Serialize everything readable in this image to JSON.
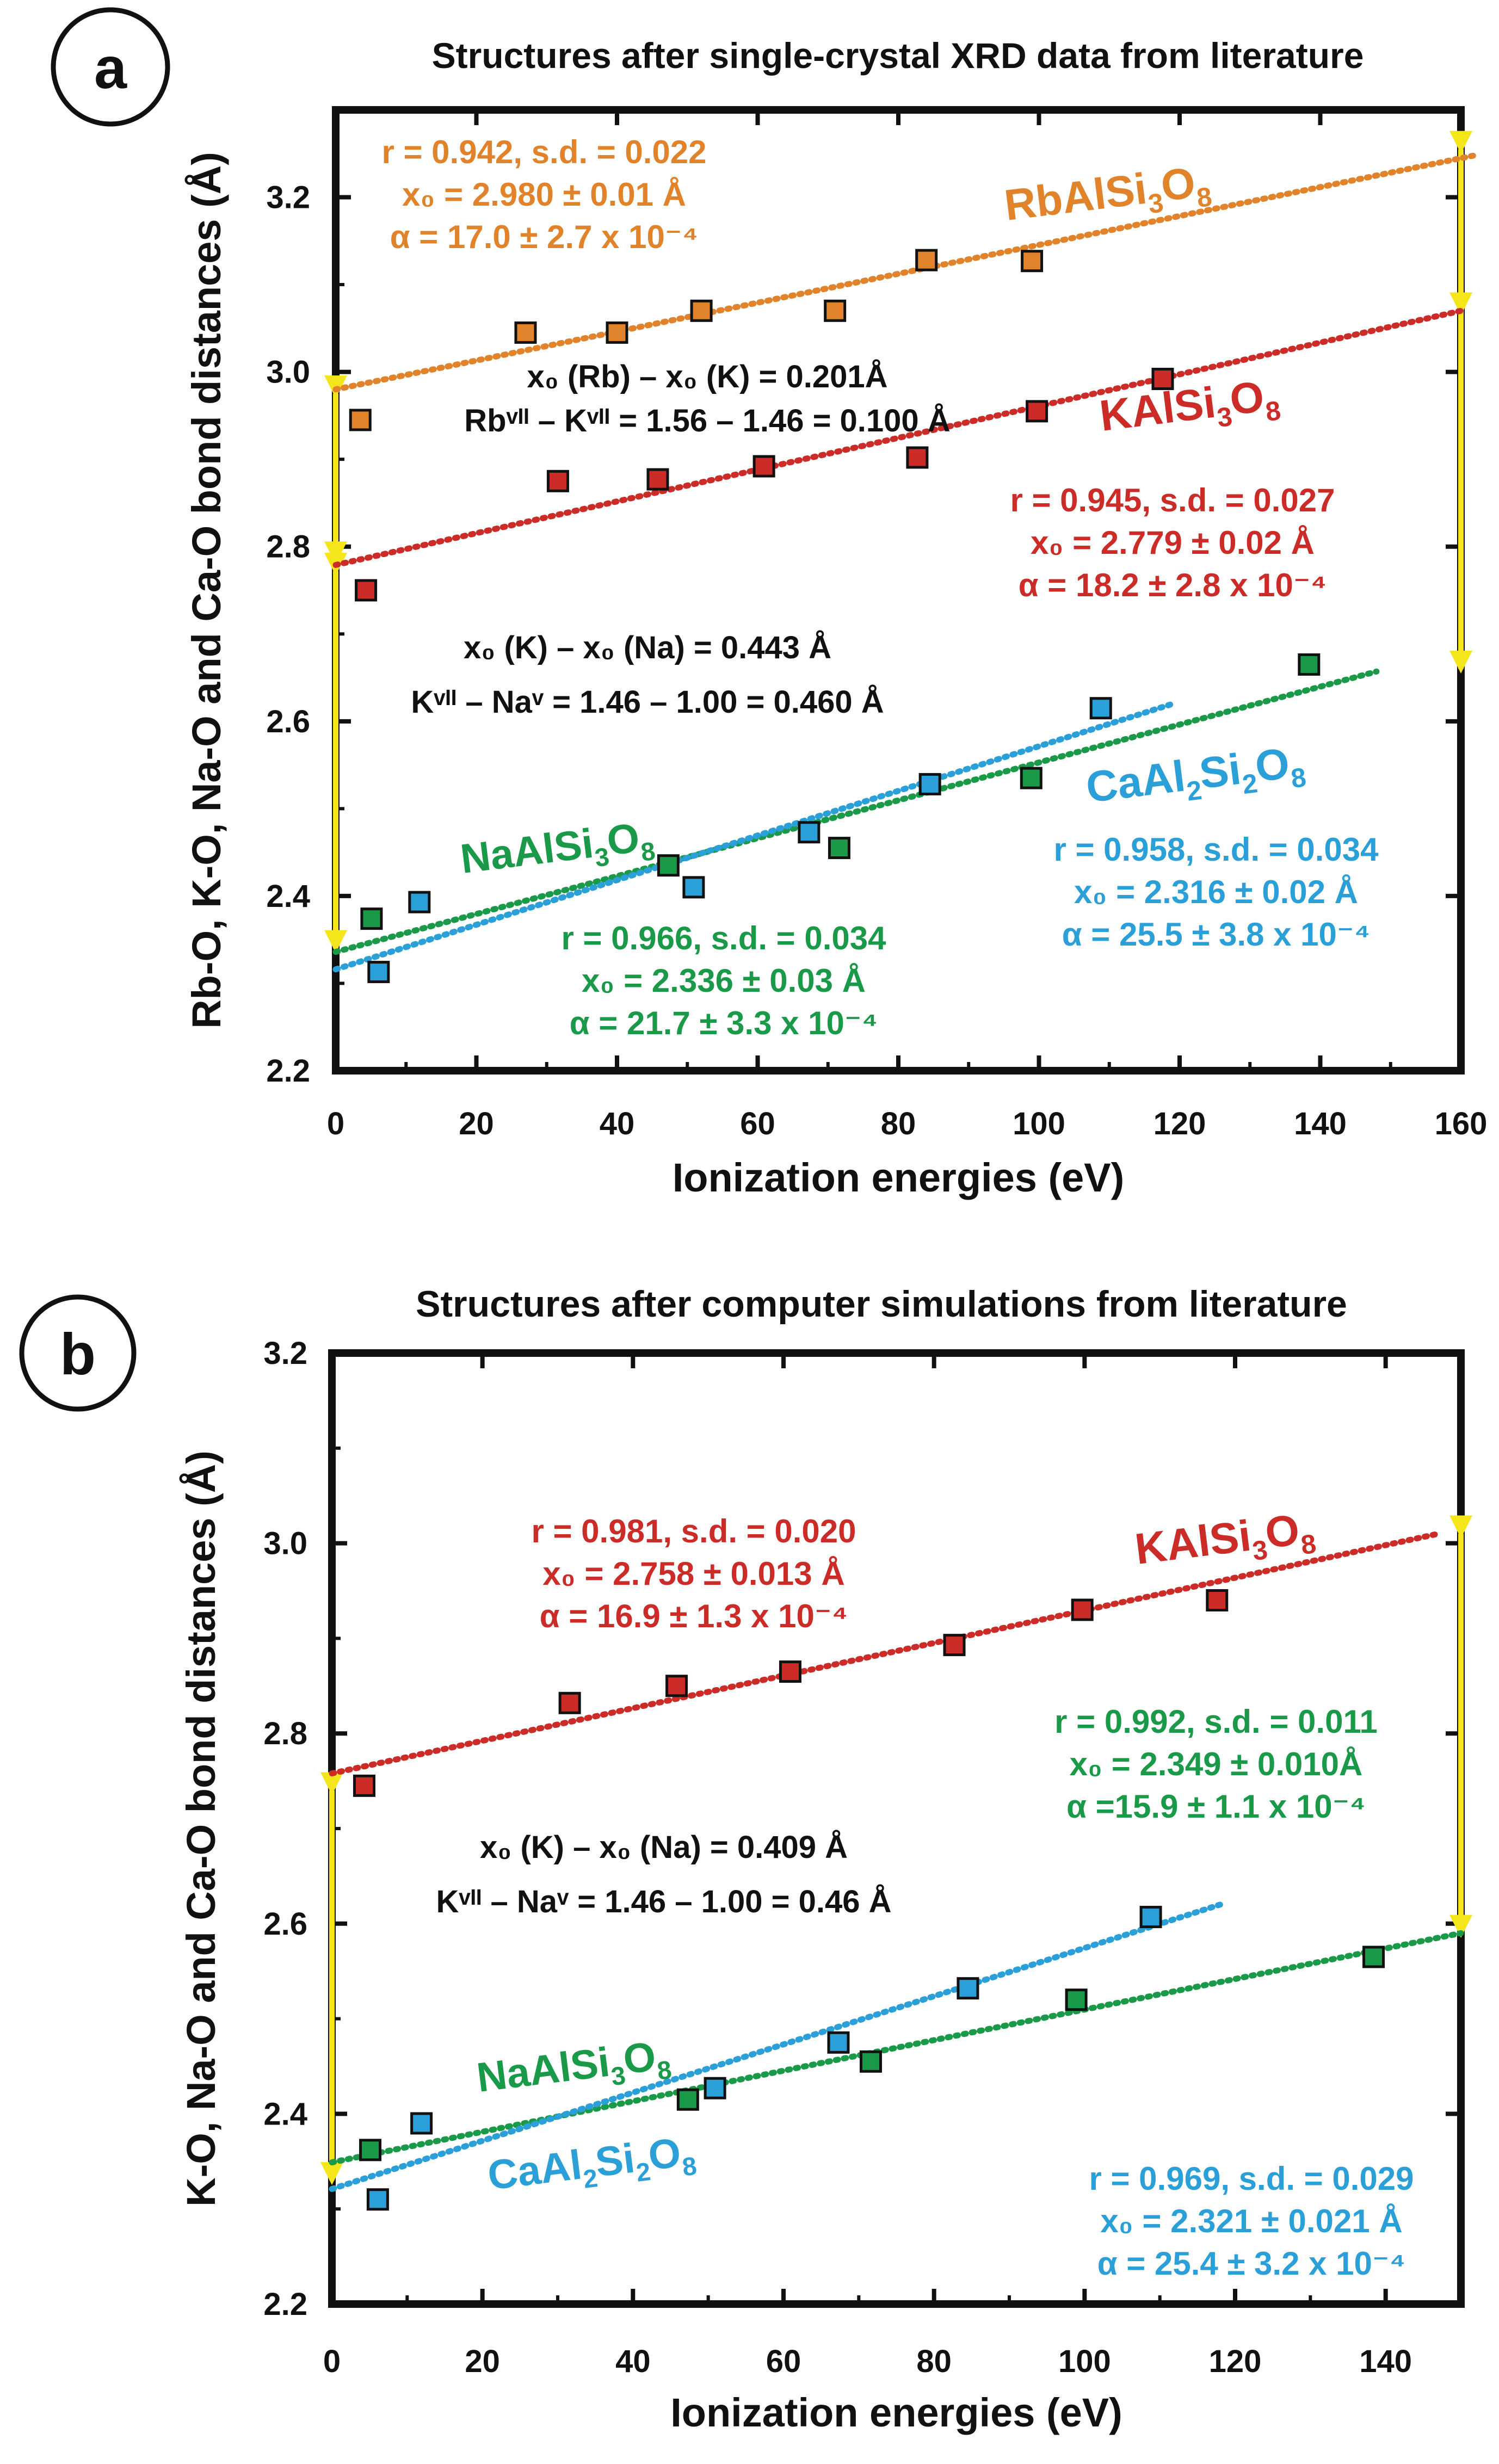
{
  "colors": {
    "orange": "#e0832a",
    "red": "#cc2c27",
    "green": "#1a9a48",
    "blue": "#2b9fd8",
    "yellow": "#f5e61c",
    "black": "#111111"
  },
  "chart_data": [
    {
      "type": "scatter",
      "panel_letter": "a",
      "title": "Structures after single-crystal XRD data from literature",
      "xlabel": "Ionization energies (eV)",
      "ylabel": "Rb-O, K-O, Na-O and Ca-O bond distances (Å)",
      "xlim": [
        0,
        160
      ],
      "ylim": [
        2.2,
        3.3
      ],
      "xticks": [
        "0",
        "20",
        "40",
        "60",
        "80",
        "100",
        "120",
        "140",
        "160"
      ],
      "yticks": [
        "2.2",
        "2.4",
        "2.6",
        "2.8",
        "3.0",
        "3.2"
      ],
      "series": [
        {
          "name": "RbAlSi3O8",
          "color_key": "orange",
          "label": {
            "base": "RbAlSi",
            "sub1": "3",
            "mid": "O",
            "sub2": "8"
          },
          "x": [
            3.5,
            27,
            40,
            52,
            71,
            84,
            99
          ],
          "y": [
            2.945,
            3.045,
            3.045,
            3.07,
            3.07,
            3.128,
            3.127
          ],
          "fit": {
            "x0": 0,
            "x1": 162,
            "y0": 2.98,
            "y1": 3.248
          },
          "stats": {
            "r": "r = 0.942, s.d. = 0.022",
            "x0": "x₀ = 2.980 ± 0.01 Å",
            "alpha": "α = 17.0 ± 2.7 x 10⁻⁴"
          }
        },
        {
          "name": "KAlSi3O8",
          "color_key": "red",
          "label": {
            "base": "KAlSi",
            "sub1": "3",
            "mid": "O",
            "sub2": "8"
          },
          "x": [
            4.3,
            31.6,
            45.8,
            60.9,
            82.7,
            99.7,
            117.6
          ],
          "y": [
            2.75,
            2.875,
            2.877,
            2.892,
            2.902,
            2.955,
            2.992
          ],
          "fit": {
            "x0": 0,
            "x1": 160,
            "y0": 2.779,
            "y1": 3.07
          },
          "stats": {
            "r": "r = 0.945, s.d. = 0.027",
            "x0": "x₀ = 2.779 ± 0.02 Å",
            "alpha": "α = 18.2 ± 2.8 x 10⁻⁴"
          }
        },
        {
          "name": "NaAlSi3O8",
          "color_key": "green",
          "label": {
            "base": "NaAlSi",
            "sub1": "3",
            "mid": "O",
            "sub2": "8"
          },
          "x": [
            5.1,
            47.3,
            71.6,
            98.9,
            138.4
          ],
          "y": [
            2.374,
            2.435,
            2.455,
            2.535,
            2.665
          ],
          "fit": {
            "x0": 0,
            "x1": 148,
            "y0": 2.336,
            "y1": 2.657
          },
          "stats": {
            "r": "r = 0.966, s.d. = 0.034",
            "x0": "x₀ = 2.336 ± 0.03 Å",
            "alpha": "α = 21.7 ± 3.3 x 10⁻⁴"
          }
        },
        {
          "name": "CaAl2Si2O8",
          "color_key": "blue",
          "label": {
            "base": "CaAl",
            "sub1": "2",
            "mid": "Si",
            "sub2": "2",
            "tail": "O",
            "sub3": "8"
          },
          "x": [
            6.1,
            11.9,
            50.9,
            67.3,
            84.5,
            108.8
          ],
          "y": [
            2.313,
            2.393,
            2.41,
            2.473,
            2.528,
            2.615
          ],
          "fit": {
            "x0": 0,
            "x1": 119,
            "y0": 2.316,
            "y1": 2.62
          },
          "stats": {
            "r": "r = 0.958, s.d. = 0.034",
            "x0": "x₀ = 2.316 ± 0.02 Å",
            "alpha": "α = 25.5 ± 3.8 x 10⁻⁴"
          }
        }
      ],
      "annotations": [
        {
          "line1": "x₀ (Rb) – x₀ (K) = 0.201Å",
          "line2": "Rbᵛᴵᴵ – Kᵛᴵᴵ = 1.56 – 1.46 = 0.100 Å"
        },
        {
          "line1": "x₀ (K) – x₀ (Na) = 0.443 Å",
          "line2": "Kᵛᴵᴵ – Naᵛ = 1.46 – 1.00 = 0.460 Å"
        }
      ],
      "arrows": [
        {
          "x": 0,
          "y_from": 2.975,
          "y_to": 2.785
        },
        {
          "x": 0,
          "y_from": 2.772,
          "y_to": 2.34
        },
        {
          "x": 160,
          "y_from": 3.255,
          "y_to": 3.07
        },
        {
          "x": 160,
          "y_from": 3.07,
          "y_to": 2.66
        }
      ]
    },
    {
      "type": "scatter",
      "panel_letter": "b",
      "title": "Structures after computer simulations from literature",
      "xlabel": "Ionization energies (eV)",
      "ylabel": "K-O, Na-O and Ca-O bond distances (Å)",
      "xlim": [
        0,
        150
      ],
      "ylim": [
        2.2,
        3.2
      ],
      "xticks": [
        "0",
        "20",
        "40",
        "60",
        "80",
        "100",
        "120",
        "140"
      ],
      "yticks": [
        "2.2",
        "2.4",
        "2.6",
        "2.8",
        "3.0",
        "3.2"
      ],
      "series": [
        {
          "name": "KAlSi3O8",
          "color_key": "red",
          "label": {
            "base": "KAlSi",
            "sub1": "3",
            "mid": "O",
            "sub2": "8"
          },
          "x": [
            4.3,
            31.6,
            45.8,
            60.9,
            82.7,
            99.7,
            117.6
          ],
          "y": [
            2.745,
            2.832,
            2.85,
            2.865,
            2.893,
            2.93,
            2.94
          ],
          "fit": {
            "x0": 0,
            "x1": 147,
            "y0": 2.758,
            "y1": 3.01
          },
          "stats": {
            "r": "r = 0.981, s.d. = 0.020",
            "x0": "x₀ = 2.758 ± 0.013 Å",
            "alpha": "α = 16.9 ± 1.3 x 10⁻⁴"
          }
        },
        {
          "name": "NaAlSi3O8",
          "color_key": "green",
          "label": {
            "base": "NaAlSi",
            "sub1": "3",
            "mid": "O",
            "sub2": "8"
          },
          "x": [
            5.1,
            47.3,
            71.6,
            98.9,
            138.4
          ],
          "y": [
            2.362,
            2.415,
            2.455,
            2.52,
            2.565
          ],
          "fit": {
            "x0": 0,
            "x1": 150,
            "y0": 2.349,
            "y1": 2.59
          },
          "stats": {
            "r": "r = 0.992, s.d. = 0.011",
            "x0": "x₀ = 2.349 ± 0.010Å",
            "alpha": "α =15.9 ± 1.1 x 10⁻⁴"
          }
        },
        {
          "name": "CaAl2Si2O8",
          "color_key": "blue",
          "label": {
            "base": "CaAl",
            "sub1": "2",
            "mid": "Si",
            "sub2": "2",
            "tail": "O",
            "sub3": "8"
          },
          "x": [
            6.1,
            11.9,
            50.9,
            67.3,
            84.5,
            108.8
          ],
          "y": [
            2.31,
            2.39,
            2.427,
            2.475,
            2.532,
            2.607
          ],
          "fit": {
            "x0": 0,
            "x1": 118,
            "y0": 2.321,
            "y1": 2.62
          },
          "stats": {
            "r": "r = 0.969, s.d. = 0.029",
            "x0": "x₀ = 2.321 ± 0.021 Å",
            "alpha": "α = 25.4 ± 3.2 x 10⁻⁴"
          }
        }
      ],
      "annotations": [
        {
          "line1": "x₀ (K) – x₀ (Na) = 0.409 Å",
          "line2": "Kᵛᴵᴵ – Naᵛ = 1.46 – 1.00 = 0.46 Å"
        }
      ],
      "arrows": [
        {
          "x": 0,
          "y_from": 2.74,
          "y_to": 2.33
        },
        {
          "x": 150,
          "y_from": 3.01,
          "y_to": 2.59
        }
      ]
    }
  ]
}
